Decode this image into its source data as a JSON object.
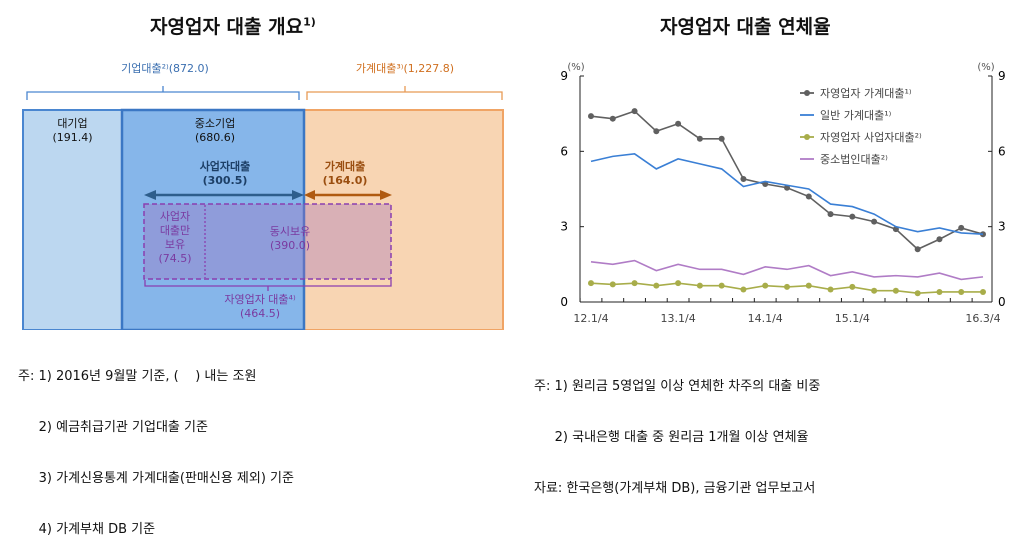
{
  "left_panel": {
    "title": "자영업자 대출 개요",
    "title_sup": "1)",
    "corporate_loans": "기업대출²⁾(872.0)",
    "household_loans": "가계대출³⁾(1,227.8)",
    "large_firms": {
      "label": "대기업",
      "value": "(191.4)"
    },
    "sme": {
      "label": "중소기업",
      "value": "(680.6)"
    },
    "business_loans": {
      "label": "사업자대출",
      "value": "(300.5)"
    },
    "household_part": {
      "label": "가계대출",
      "value": "(164.0)"
    },
    "business_only": {
      "label": "사업자\n대출만\n보유",
      "value": "(74.5)"
    },
    "both": {
      "label": "동시보유",
      "value": "(390.0)"
    },
    "self_employed": {
      "label": "자영업자 대출⁴⁾",
      "value": "(464.5)"
    },
    "colors": {
      "light_blue": "#bcd7f0",
      "blue": "#86b6ea",
      "orange": "#f8d5b3",
      "purple": "#8a3fb0",
      "dark_blue_arrow": "#2e5e8c",
      "brown_arrow": "#b05a10"
    },
    "notes": [
      "주: 1) 2016년 9월말 기준, (    ) 내는 조원",
      "     2) 예금취급기관 기업대출 기준",
      "     3) 가계신용통계 가계대출(판매신용 제외) 기준",
      "     4) 가계부채 DB 기준"
    ]
  },
  "chart_data": {
    "type": "line",
    "title": "자영업자 대출 연체율",
    "ylabel_left": "(%)",
    "ylabel_right": "(%)",
    "ylim": [
      0,
      9
    ],
    "yticks": [
      0,
      3,
      6,
      9
    ],
    "x": [
      "12.1/4",
      "12.2/4",
      "12.3/4",
      "12.4/4",
      "13.1/4",
      "13.2/4",
      "13.3/4",
      "13.4/4",
      "14.1/4",
      "14.2/4",
      "14.3/4",
      "14.4/4",
      "15.1/4",
      "15.2/4",
      "15.3/4",
      "15.4/4",
      "16.1/4",
      "16.2/4",
      "16.3/4"
    ],
    "xtick_labels": [
      "12.1/4",
      "13.1/4",
      "14.1/4",
      "15.1/4",
      "16.3/4"
    ],
    "legend_position": "top-right",
    "grid": false,
    "series": [
      {
        "name": "자영업자 가계대출¹⁾",
        "color": "#606060",
        "marker": "circle",
        "values": [
          7.4,
          7.3,
          7.6,
          6.8,
          7.1,
          6.5,
          6.5,
          4.9,
          4.7,
          4.55,
          4.2,
          3.5,
          3.4,
          3.2,
          2.9,
          2.1,
          2.5,
          2.95,
          2.7
        ]
      },
      {
        "name": "일반 가계대출¹⁾",
        "color": "#3a7fd5",
        "marker": "none",
        "values": [
          5.6,
          5.8,
          5.9,
          5.3,
          5.7,
          5.5,
          5.3,
          4.6,
          4.8,
          4.65,
          4.5,
          3.9,
          3.8,
          3.5,
          3.0,
          2.8,
          2.95,
          2.75,
          2.7
        ]
      },
      {
        "name": "자영업자 사업자대출²⁾",
        "color": "#a8ad4a",
        "marker": "circle",
        "values": [
          0.75,
          0.7,
          0.75,
          0.65,
          0.75,
          0.65,
          0.65,
          0.5,
          0.65,
          0.6,
          0.65,
          0.5,
          0.6,
          0.45,
          0.45,
          0.35,
          0.4,
          0.4,
          0.4
        ]
      },
      {
        "name": "중소법인대출²⁾",
        "color": "#b07cc6",
        "marker": "none",
        "values": [
          1.6,
          1.5,
          1.65,
          1.25,
          1.5,
          1.3,
          1.3,
          1.1,
          1.4,
          1.3,
          1.45,
          1.05,
          1.2,
          1.0,
          1.05,
          1.0,
          1.15,
          0.9,
          1.0
        ]
      }
    ],
    "notes": [
      "주: 1) 원리금 5영업일 이상 연체한 차주의 대출 비중",
      "     2) 국내은행 대출 중 원리금 1개월 이상 연체율",
      "자료: 한국은행(가계부채 DB), 금융기관 업무보고서"
    ]
  }
}
